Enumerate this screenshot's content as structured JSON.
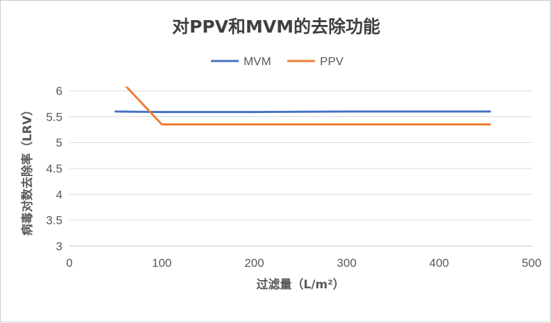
{
  "chart_data": {
    "type": "line",
    "title": "对PPV和MVM的去除功能",
    "xlabel": "过滤量（L/m²）",
    "ylabel": "病毒对数去除率（LRV）",
    "xlim": [
      0,
      500
    ],
    "ylim": [
      3,
      6
    ],
    "x_ticks": [
      "0",
      "100",
      "200",
      "300",
      "400",
      "500"
    ],
    "y_ticks": [
      "3",
      "3.5",
      "4",
      "4.5",
      "5",
      "5.5",
      "6"
    ],
    "grid": true,
    "legend_position": "top",
    "series": [
      {
        "name": "MVM",
        "color": "#4472C4",
        "points": [
          [
            50,
            5.6
          ],
          [
            100,
            5.59
          ],
          [
            200,
            5.59
          ],
          [
            300,
            5.6
          ],
          [
            455,
            5.6
          ]
        ]
      },
      {
        "name": "PPV",
        "color": "#ED7D31",
        "points": [
          [
            50,
            6.3
          ],
          [
            100,
            5.35
          ],
          [
            200,
            5.35
          ],
          [
            300,
            5.35
          ],
          [
            455,
            5.35
          ]
        ]
      }
    ]
  }
}
